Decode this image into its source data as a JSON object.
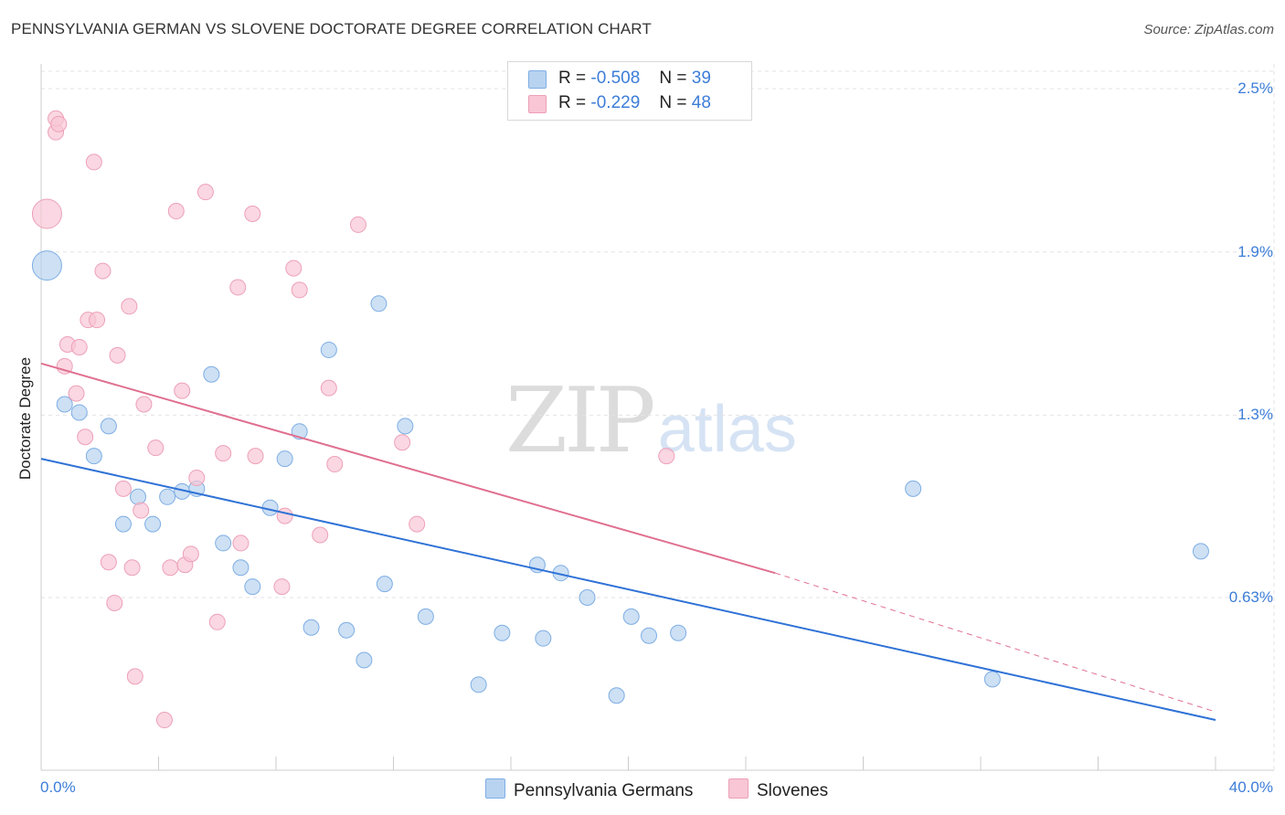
{
  "header": {
    "title": "PENNSYLVANIA GERMAN VS SLOVENE DOCTORATE DEGREE CORRELATION CHART",
    "source": "Source: ZipAtlas.com"
  },
  "watermark": {
    "zip": "ZIP",
    "atlas": "atlas"
  },
  "legend_top": {
    "rows": [
      {
        "r_label": "R =",
        "r_value": "-0.508",
        "n_label": "N =",
        "n_value": "39"
      },
      {
        "r_label": "R =",
        "r_value": "-0.229",
        "n_label": "N =",
        "n_value": "48"
      }
    ]
  },
  "legend_bottom": {
    "items": [
      {
        "label": "Pennsylvania Germans"
      },
      {
        "label": "Slovenes"
      }
    ]
  },
  "colors": {
    "blue_fill": "#b8d3f0",
    "blue_stroke": "#7eaee4",
    "blue_line": "#2f72d6",
    "pink_fill": "#f8c6d5",
    "pink_stroke": "#eda0b8",
    "pink_line": "#e0708f",
    "tick_text": "#3d7dd8",
    "grid": "#e3e3e3"
  },
  "chart_data": {
    "type": "scatter",
    "title": "PENNSYLVANIA GERMAN VS SLOVENE DOCTORATE DEGREE CORRELATION CHART",
    "xlabel": "",
    "ylabel": "Doctorate Degree",
    "xlim": [
      0,
      40
    ],
    "ylim": [
      0,
      2.7
    ],
    "x_tick_labels": [
      "0.0%",
      "40.0%"
    ],
    "y_ticks": [
      {
        "value": 2.5,
        "label": "2.5%"
      },
      {
        "value": 1.9,
        "label": "1.9%"
      },
      {
        "value": 1.3,
        "label": "1.3%"
      },
      {
        "value": 0.63,
        "label": "0.63%"
      }
    ],
    "grid": true,
    "legend_position": "top-center",
    "series": [
      {
        "name": "Pennsylvania Germans",
        "color": "#b8d3f0",
        "trend": {
          "x": [
            0,
            40
          ],
          "y": [
            1.14,
            0.18
          ]
        },
        "points": [
          {
            "x": 0.2,
            "y": 1.85,
            "big": true
          },
          {
            "x": 0.8,
            "y": 1.34
          },
          {
            "x": 1.3,
            "y": 1.31
          },
          {
            "x": 1.8,
            "y": 1.15
          },
          {
            "x": 2.3,
            "y": 1.26
          },
          {
            "x": 2.8,
            "y": 0.9
          },
          {
            "x": 3.3,
            "y": 1.0
          },
          {
            "x": 3.8,
            "y": 0.9
          },
          {
            "x": 4.3,
            "y": 1.0
          },
          {
            "x": 4.8,
            "y": 1.02
          },
          {
            "x": 5.3,
            "y": 1.03
          },
          {
            "x": 5.8,
            "y": 1.45
          },
          {
            "x": 6.2,
            "y": 0.83
          },
          {
            "x": 6.8,
            "y": 0.74
          },
          {
            "x": 7.2,
            "y": 0.67
          },
          {
            "x": 8.3,
            "y": 1.14
          },
          {
            "x": 7.8,
            "y": 0.96
          },
          {
            "x": 8.8,
            "y": 1.24
          },
          {
            "x": 9.2,
            "y": 0.52
          },
          {
            "x": 9.8,
            "y": 1.54
          },
          {
            "x": 10.4,
            "y": 0.51
          },
          {
            "x": 11.0,
            "y": 0.4
          },
          {
            "x": 11.5,
            "y": 1.71
          },
          {
            "x": 11.7,
            "y": 0.68
          },
          {
            "x": 12.4,
            "y": 1.26
          },
          {
            "x": 13.1,
            "y": 0.56
          },
          {
            "x": 14.9,
            "y": 0.31
          },
          {
            "x": 15.7,
            "y": 0.5
          },
          {
            "x": 16.9,
            "y": 0.75
          },
          {
            "x": 17.1,
            "y": 0.48
          },
          {
            "x": 17.7,
            "y": 0.72
          },
          {
            "x": 18.6,
            "y": 0.63
          },
          {
            "x": 19.6,
            "y": 0.27
          },
          {
            "x": 20.1,
            "y": 0.56
          },
          {
            "x": 20.7,
            "y": 0.49
          },
          {
            "x": 21.7,
            "y": 0.5
          },
          {
            "x": 29.7,
            "y": 1.03
          },
          {
            "x": 32.4,
            "y": 0.33
          },
          {
            "x": 39.5,
            "y": 0.8
          }
        ]
      },
      {
        "name": "Slovenes",
        "color": "#f8c6d5",
        "trend": {
          "x": [
            0,
            25
          ],
          "y": [
            1.49,
            0.72
          ]
        },
        "trend_dashed": {
          "x": [
            25,
            40
          ],
          "y": [
            0.72,
            0.21
          ]
        },
        "points": [
          {
            "x": 0.2,
            "y": 2.04,
            "big": true
          },
          {
            "x": 0.5,
            "y": 2.34
          },
          {
            "x": 0.5,
            "y": 2.39
          },
          {
            "x": 0.6,
            "y": 2.37
          },
          {
            "x": 0.8,
            "y": 1.48
          },
          {
            "x": 0.9,
            "y": 1.56
          },
          {
            "x": 1.2,
            "y": 1.38
          },
          {
            "x": 1.3,
            "y": 1.55
          },
          {
            "x": 1.5,
            "y": 1.22
          },
          {
            "x": 1.6,
            "y": 1.65
          },
          {
            "x": 1.8,
            "y": 2.23
          },
          {
            "x": 1.9,
            "y": 1.65
          },
          {
            "x": 2.1,
            "y": 1.83
          },
          {
            "x": 2.3,
            "y": 0.76
          },
          {
            "x": 2.5,
            "y": 0.61
          },
          {
            "x": 2.6,
            "y": 1.52
          },
          {
            "x": 2.8,
            "y": 1.03
          },
          {
            "x": 3.0,
            "y": 1.7
          },
          {
            "x": 3.1,
            "y": 0.74
          },
          {
            "x": 3.2,
            "y": 0.34
          },
          {
            "x": 3.4,
            "y": 0.95
          },
          {
            "x": 3.5,
            "y": 1.34
          },
          {
            "x": 3.9,
            "y": 1.18
          },
          {
            "x": 4.2,
            "y": 0.18
          },
          {
            "x": 4.4,
            "y": 0.74
          },
          {
            "x": 4.6,
            "y": 2.05
          },
          {
            "x": 4.8,
            "y": 1.39
          },
          {
            "x": 4.9,
            "y": 0.75
          },
          {
            "x": 5.1,
            "y": 0.79
          },
          {
            "x": 5.3,
            "y": 1.07
          },
          {
            "x": 5.6,
            "y": 2.12
          },
          {
            "x": 6.0,
            "y": 0.54
          },
          {
            "x": 6.2,
            "y": 1.16
          },
          {
            "x": 6.7,
            "y": 1.77
          },
          {
            "x": 6.8,
            "y": 0.83
          },
          {
            "x": 7.2,
            "y": 2.04
          },
          {
            "x": 7.3,
            "y": 1.15
          },
          {
            "x": 8.2,
            "y": 0.67
          },
          {
            "x": 8.3,
            "y": 0.93
          },
          {
            "x": 8.6,
            "y": 1.84
          },
          {
            "x": 8.8,
            "y": 1.76
          },
          {
            "x": 9.5,
            "y": 0.86
          },
          {
            "x": 9.8,
            "y": 1.4
          },
          {
            "x": 10.0,
            "y": 1.12
          },
          {
            "x": 10.8,
            "y": 2.0
          },
          {
            "x": 12.3,
            "y": 1.2
          },
          {
            "x": 12.8,
            "y": 0.9
          },
          {
            "x": 21.3,
            "y": 1.15
          }
        ]
      }
    ]
  }
}
